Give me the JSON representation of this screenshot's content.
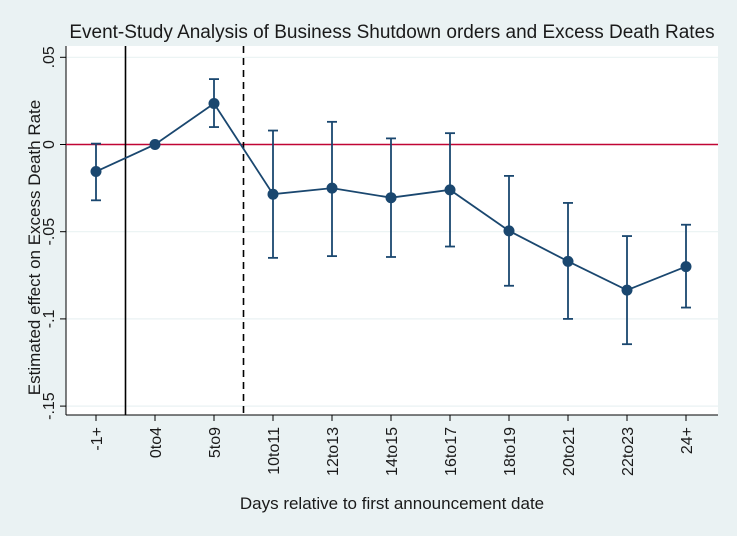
{
  "chart_data": {
    "type": "line",
    "title": "Event-Study Analysis of Business Shutdown orders and Excess Death Rates",
    "xlabel": "Days relative to first announcement date",
    "ylabel": "Estimated effect on Excess Death Rate",
    "categories": [
      "-1+",
      "0to4",
      "5to9",
      "10to11",
      "12to13",
      "14to15",
      "16to17",
      "18to19",
      "20to21",
      "22to23",
      "24+"
    ],
    "ylim": [
      -0.155,
      0.055
    ],
    "yticks": [
      0.05,
      0,
      -0.05,
      -0.1,
      -0.15
    ],
    "ytick_labels": [
      ".05",
      "0",
      "-.05",
      "-.1",
      "-.15"
    ],
    "grid": true,
    "series": [
      {
        "values": [
          -0.0155,
          0.0,
          0.0235,
          -0.0285,
          -0.025,
          -0.0305,
          -0.026,
          -0.0495,
          -0.067,
          -0.0835,
          -0.07
        ],
        "ci_low": [
          -0.032,
          0.0,
          0.01,
          -0.065,
          -0.064,
          -0.0645,
          -0.0585,
          -0.081,
          -0.1,
          -0.1145,
          -0.0935
        ],
        "ci_high": [
          0.0005,
          0.0,
          0.0375,
          0.008,
          0.013,
          0.0035,
          0.0065,
          -0.018,
          -0.0335,
          -0.0525,
          -0.046
        ],
        "color": "#1a476f"
      }
    ],
    "reference_lines": {
      "horizontal_zero_color": "#c10534",
      "solid_vertical_between": [
        "-1+",
        "0to4"
      ],
      "dashed_vertical_between": [
        "5to9",
        "10to11"
      ]
    },
    "colors": {
      "background": "#eaf2f3",
      "plot_background": "#ffffff",
      "gridline": "#eaf2f3"
    }
  }
}
